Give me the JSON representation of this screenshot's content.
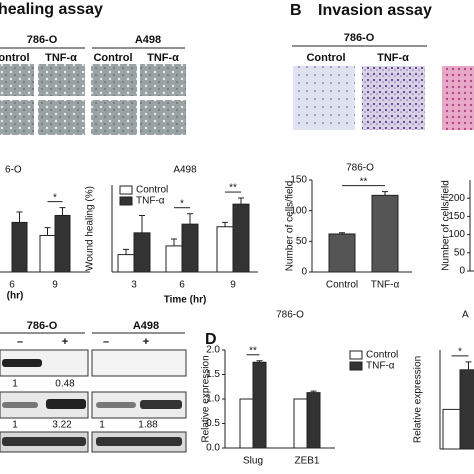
{
  "panels": {
    "A": {
      "title": "healing assay",
      "cell_lines": [
        "786-O",
        "A498"
      ],
      "conditions": [
        "ontrol",
        "TNF-α",
        "Control",
        "TNF-α"
      ]
    },
    "B": {
      "letter": "B",
      "title": "Invasion assay",
      "cell_line": "786-O",
      "conditions": [
        "Control",
        "TNF-α"
      ]
    },
    "C": {
      "cell_lines": [
        "786-O",
        "A498"
      ],
      "treatments": [
        "–",
        "+",
        "–",
        "+"
      ],
      "quantities": [
        1,
        0.48,
        1,
        3.22,
        1,
        1.88
      ]
    },
    "D": {
      "letter": "D"
    }
  },
  "chart_data": [
    {
      "type": "bar",
      "title": "6-O",
      "categories": [
        "6",
        "9"
      ],
      "x_label": "(hr)",
      "series": [
        {
          "color": "#ffffff",
          "values": [
            null,
            42
          ],
          "errors": [
            null,
            9
          ]
        },
        {
          "color": "#333333",
          "values": [
            57,
            65
          ],
          "errors": [
            12,
            9
          ]
        }
      ],
      "ylim": [
        0,
        100
      ],
      "annotations": [
        "*"
      ]
    },
    {
      "type": "bar",
      "title": "A498",
      "categories": [
        "3",
        "6",
        "9"
      ],
      "x_label": "Time (hr)",
      "y_label": "Wound healing (%)",
      "series": [
        {
          "name": "Control",
          "color": "#ffffff",
          "values": [
            20,
            30,
            52
          ],
          "errors": [
            6,
            8,
            5
          ]
        },
        {
          "name": "TNF-α",
          "color": "#333333",
          "values": [
            45,
            55,
            78
          ],
          "errors": [
            20,
            12,
            7
          ]
        }
      ],
      "ylim": [
        0,
        100
      ],
      "annotations": [
        "*",
        "**"
      ],
      "legend": "upper left"
    },
    {
      "type": "bar",
      "title": "786-O",
      "categories": [
        "Control",
        "TNF-α"
      ],
      "y_label": "Number of cells/field",
      "series": [
        {
          "color": "#555555",
          "values": [
            62,
            125
          ],
          "errors": [
            2,
            6
          ]
        }
      ],
      "ylim": [
        0,
        150
      ],
      "yticks": [
        0,
        50,
        100,
        150
      ],
      "annotations": [
        "**"
      ]
    },
    {
      "type": "bar",
      "y_label": "Number of cells/field",
      "categories": [],
      "series": [],
      "ylim": [
        0,
        250
      ],
      "yticks": [
        0,
        50,
        100,
        150,
        200
      ]
    },
    {
      "type": "bar",
      "title": "786-O",
      "categories": [
        "Slug",
        "ZEB1"
      ],
      "y_label": "Relative expression",
      "series": [
        {
          "name": "Control",
          "color": "#ffffff",
          "values": [
            1.0,
            1.0
          ],
          "errors": [
            null,
            null
          ]
        },
        {
          "name": "TNF-α",
          "color": "#333333",
          "values": [
            1.75,
            1.13
          ],
          "errors": [
            0.03,
            0.03
          ]
        }
      ],
      "ylim": [
        0,
        2
      ],
      "yticks": [
        {
          "value": 0,
          "label": "0.0"
        },
        {
          "value": 0.5,
          "label": "0.5"
        },
        {
          "value": 1,
          "label": "1.0"
        },
        {
          "value": 1.5,
          "label": "1.5"
        },
        {
          "value": 2,
          "label": "2.0"
        }
      ],
      "annotations": [
        "**"
      ],
      "legend": "right"
    },
    {
      "type": "bar",
      "title": "A",
      "categories": [
        null
      ],
      "y_label": "Relative expression",
      "series": [
        {
          "color": "#ffffff",
          "values": [
            1.0
          ],
          "errors": [
            null
          ]
        },
        {
          "color": "#333333",
          "values": [
            2.0
          ],
          "errors": [
            0.2
          ]
        }
      ],
      "ylim": [
        0,
        2.5
      ],
      "annotations": [
        "*"
      ]
    }
  ]
}
